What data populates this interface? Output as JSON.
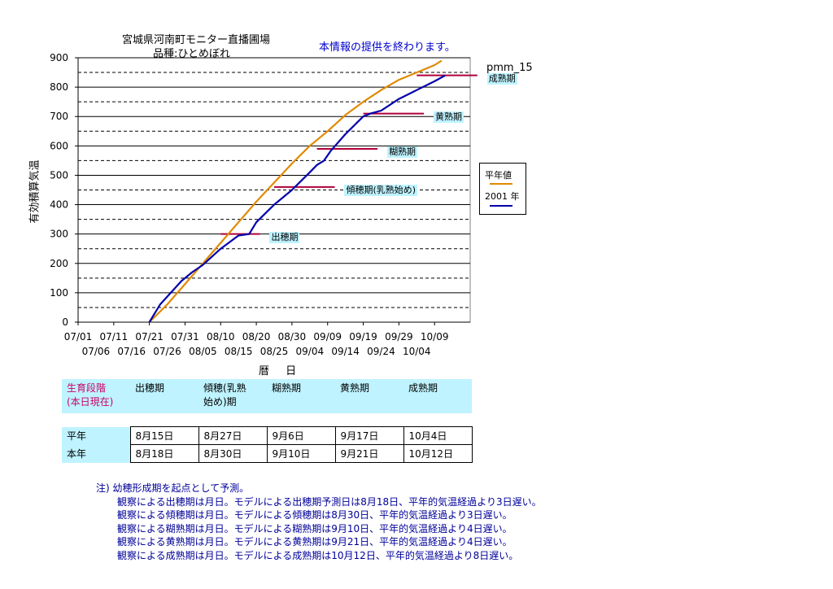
{
  "titles": {
    "line1": "宮城県河南町モニター直播圃場",
    "line2": "品種:ひとめぼれ",
    "notice": "本情報の提供を終わります。",
    "model": "pmm_15"
  },
  "axes": {
    "ylabel": "有効積算気温",
    "xlabel": "暦 日"
  },
  "legend": {
    "normal": "平年値",
    "current": "2001 年"
  },
  "colors": {
    "normal_line": "#e08a00",
    "current_line": "#0000aa",
    "phase_marker": "#b0003a",
    "label_bg": "#bff3ff"
  },
  "chart_data": {
    "type": "line",
    "title": "宮城県河南町モニター直播圃場 品種:ひとめぼれ",
    "xlabel": "暦 日",
    "ylabel": "有効積算気温",
    "ylim": [
      0,
      900
    ],
    "yticks": [
      0,
      100,
      200,
      300,
      400,
      500,
      600,
      700,
      800,
      900
    ],
    "xlim": [
      "07/01",
      "10/19"
    ],
    "xticks_row1": [
      "07/01",
      "07/11",
      "07/21",
      "07/31",
      "08/10",
      "08/20",
      "08/30",
      "09/09",
      "09/19",
      "09/29",
      "10/09"
    ],
    "xticks_row2": [
      "07/06",
      "07/16",
      "07/26",
      "08/05",
      "08/15",
      "08/25",
      "09/04",
      "09/14",
      "09/24",
      "10/04"
    ],
    "grid": "horizontal",
    "legend_position": "right",
    "series": [
      {
        "name": "平年値",
        "points": [
          [
            "07/21",
            0
          ],
          [
            "07/26",
            60
          ],
          [
            "07/31",
            130
          ],
          [
            "08/05",
            200
          ],
          [
            "08/10",
            270
          ],
          [
            "08/15",
            340
          ],
          [
            "08/20",
            410
          ],
          [
            "08/25",
            475
          ],
          [
            "08/30",
            540
          ],
          [
            "09/04",
            600
          ],
          [
            "09/09",
            650
          ],
          [
            "09/14",
            705
          ],
          [
            "09/19",
            750
          ],
          [
            "09/24",
            790
          ],
          [
            "09/29",
            825
          ],
          [
            "10/04",
            850
          ],
          [
            "10/09",
            875
          ],
          [
            "10/11",
            890
          ]
        ]
      },
      {
        "name": "2001 年",
        "points": [
          [
            "07/21",
            0
          ],
          [
            "07/24",
            60
          ],
          [
            "07/27",
            100
          ],
          [
            "07/30",
            140
          ],
          [
            "08/02",
            170
          ],
          [
            "08/05",
            195
          ],
          [
            "08/10",
            250
          ],
          [
            "08/15",
            295
          ],
          [
            "08/18",
            300
          ],
          [
            "08/20",
            340
          ],
          [
            "08/25",
            400
          ],
          [
            "08/30",
            450
          ],
          [
            "09/04",
            510
          ],
          [
            "09/06",
            535
          ],
          [
            "09/08",
            550
          ],
          [
            "09/10",
            585
          ],
          [
            "09/14",
            640
          ],
          [
            "09/19",
            700
          ],
          [
            "09/21",
            710
          ],
          [
            "09/24",
            720
          ],
          [
            "09/29",
            760
          ],
          [
            "10/04",
            790
          ],
          [
            "10/09",
            820
          ],
          [
            "10/12",
            840
          ]
        ]
      }
    ],
    "phase_markers": [
      {
        "label": "出穂期",
        "y": 300,
        "x_from": "08/10",
        "x_to": "08/21"
      },
      {
        "label": "傾穂期(乳熟始め)",
        "y": 460,
        "x_from": "08/25",
        "x_to": "09/11"
      },
      {
        "label": "糊熟期",
        "y": 590,
        "x_from": "09/06",
        "x_to": "09/23"
      },
      {
        "label": "黄熟期",
        "y": 710,
        "x_from": "09/19",
        "x_to": "10/06"
      },
      {
        "label": "成熟期",
        "y": 840,
        "x_from": "10/04",
        "x_to": "10/21"
      }
    ]
  },
  "table": {
    "header": [
      "生育段階\n(本日現在)",
      "出穂期",
      "傾穂(乳熟\n始め)期",
      "糊熟期",
      "黄熟期",
      "成熟期"
    ],
    "rows": [
      {
        "label": "平年",
        "values": [
          "8月15日",
          "8月27日",
          "9月6日",
          "9月17日",
          "10月4日"
        ]
      },
      {
        "label": "本年",
        "values": [
          "8月18日",
          "8月30日",
          "9月10日",
          "9月21日",
          "10月12日"
        ]
      }
    ]
  },
  "notes": {
    "head": "注) 幼穂形成期を起点として予測。",
    "lines": [
      "観察による出穂期は月日。モデルによる出穂期予測日は8月18日、平年的気温経過より3日遅い。",
      "観察による傾穂期は月日。モデルによる傾穂期は8月30日、平年的気温経過より3日遅い。",
      "観察による糊熟期は月日。モデルによる糊熟期は9月10日、平年的気温経過より4日遅い。",
      "観察による黄熟期は月日。モデルによる黄熟期は9月21日、平年的気温経過より4日遅い。",
      "観察による成熟期は月日。モデルによる成熟期は10月12日、平年的気温経過より8日遅い。"
    ]
  }
}
